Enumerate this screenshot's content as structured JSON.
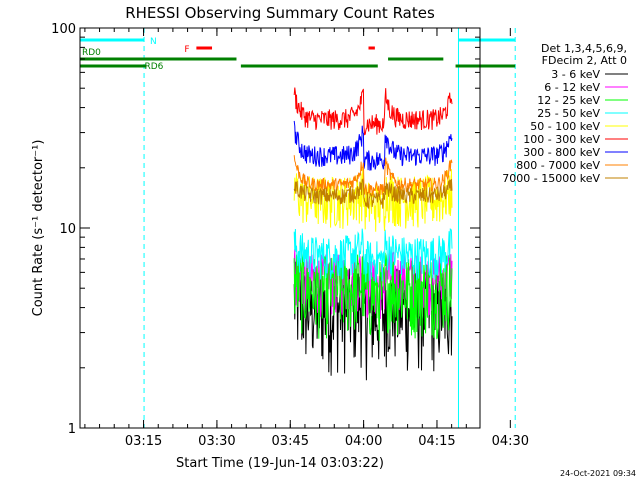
{
  "chart_data": {
    "type": "line",
    "title": "RHESSI Observing Summary Count Rates",
    "xlabel": "Start Time (19-Jun-14 03:03:22)",
    "ylabel": "Count Rate (s⁻¹ detector⁻¹)",
    "yscale": "log",
    "ylim": [
      1,
      100
    ],
    "xlim_min": [
      -1.4,
      80.4
    ],
    "y_tick_labels": [
      "1",
      "10",
      "100"
    ],
    "y_tick_values": [
      1,
      10,
      100
    ],
    "x_tick_labels": [
      "03:15",
      "03:30",
      "03:45",
      "04:00",
      "04:15",
      "04:30"
    ],
    "x_tick_values": [
      11.6,
      26.6,
      41.6,
      56.6,
      71.6,
      86.6
    ],
    "legend_header": [
      "Det 1,3,4,5,6,9,",
      "FDecim 2, Att 0"
    ],
    "legend_position": "right",
    "series": [
      {
        "name": "3 - 6 keV",
        "color": "#000000",
        "shape": "quiet",
        "base": 4.0,
        "peak": 7.0,
        "noise": 0.55,
        "flare": 10
      },
      {
        "name": "6 - 12 keV",
        "color": "#ff00ff",
        "shape": "quiet",
        "base": 5.5,
        "peak": 9.5,
        "noise": 0.35,
        "flare": 15
      },
      {
        "name": "12 - 25 keV",
        "color": "#00ff00",
        "shape": "quiet",
        "base": 5.0,
        "peak": 13.0,
        "noise": 0.45,
        "flare": 6
      },
      {
        "name": "25 - 50 keV",
        "color": "#00ffff",
        "shape": "quiet",
        "base": 7.3,
        "peak": 17.0,
        "noise": 0.25,
        "flare": 8
      },
      {
        "name": "50 - 100 keV",
        "color": "#ffff00",
        "shape": "quiet",
        "base": 14.0,
        "peak": 20.0,
        "noise": 0.3,
        "flare": 16
      },
      {
        "name": "100 - 300 keV",
        "color": "#ff0000",
        "shape": "bowl",
        "base": 35.0,
        "peak": 35.0,
        "noise": 0.12,
        "flare": 0
      },
      {
        "name": "300 - 800 keV",
        "color": "#0000ff",
        "shape": "bowl",
        "base": 23.0,
        "peak": 37.0,
        "noise": 0.12,
        "flare": 0
      },
      {
        "name": "800 - 7000 keV",
        "color": "#ff8000",
        "shape": "bowl",
        "base": 16.5,
        "peak": 35.0,
        "noise": 0.08,
        "flare": 0
      },
      {
        "name": "7000 - 15000 keV",
        "color": "#c08000",
        "shape": "quiet",
        "base": 14.5,
        "peak": 20.0,
        "noise": 0.1,
        "flare": 0
      }
    ],
    "intervals": [
      {
        "start": 42.4,
        "end": 56.6
      },
      {
        "start": 60.9,
        "end": 74.7
      }
    ],
    "flag_bars": [
      {
        "label": "N",
        "color": "#00ffff",
        "row": 1,
        "start": -1.4,
        "end": 11.7
      },
      {
        "label": "",
        "color": "#00ffff",
        "row": 1,
        "start": 76.0,
        "end": 87.6
      },
      {
        "label": "F",
        "color": "#ff0000",
        "row": 2,
        "start": 22.4,
        "end": 25.6
      },
      {
        "label": "",
        "color": "#ff0000",
        "row": 2,
        "start": 57.6,
        "end": 58.9
      },
      {
        "label": "RD0",
        "color": "#008000",
        "row": 3,
        "start": -1.4,
        "end": 30.6
      },
      {
        "label": "",
        "color": "#008000",
        "row": 3,
        "start": 61.6,
        "end": 72.9
      },
      {
        "label": "RD6",
        "color": "#008000",
        "row": 4,
        "start": -1.4,
        "end": 12.2
      },
      {
        "label": "",
        "color": "#008000",
        "row": 4,
        "start": 31.5,
        "end": 59.5
      },
      {
        "label": "",
        "color": "#008000",
        "row": 4,
        "start": 75.4,
        "end": 87.6
      }
    ],
    "vertical_markers": [
      {
        "x": -1.4,
        "color": "#00ffff",
        "style": "solid"
      },
      {
        "x": 11.7,
        "color": "#00ffff",
        "style": "dashed"
      },
      {
        "x": 76.0,
        "color": "#00ffff",
        "style": "solid"
      },
      {
        "x": 87.6,
        "color": "#00ffff",
        "style": "dashed"
      }
    ],
    "timestamp": "24-Oct-2021 09:34"
  }
}
